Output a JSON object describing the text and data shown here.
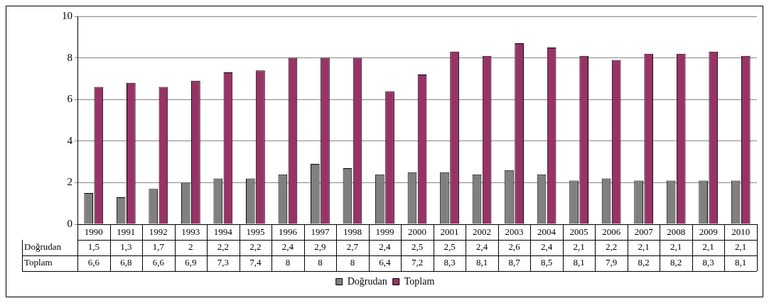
{
  "chart_data": {
    "type": "bar",
    "categories": [
      "1990",
      "1991",
      "1992",
      "1993",
      "1994",
      "1995",
      "1996",
      "1997",
      "1998",
      "1999",
      "2000",
      "2001",
      "2002",
      "2003",
      "2004",
      "2005",
      "2006",
      "2007",
      "2008",
      "2009",
      "2010"
    ],
    "series": [
      {
        "name": "Doğrudan",
        "color": "#808080",
        "values": [
          1.5,
          1.3,
          1.7,
          2,
          2.2,
          2.2,
          2.4,
          2.9,
          2.7,
          2.4,
          2.5,
          2.5,
          2.4,
          2.6,
          2.4,
          2.1,
          2.2,
          2.1,
          2.1,
          2.1,
          2.1
        ],
        "value_labels": [
          "1,5",
          "1,3",
          "1,7",
          "2",
          "2,2",
          "2,2",
          "2,4",
          "2,9",
          "2,7",
          "2,4",
          "2,5",
          "2,5",
          "2,4",
          "2,6",
          "2,4",
          "2,1",
          "2,2",
          "2,1",
          "2,1",
          "2,1",
          "2,1"
        ]
      },
      {
        "name": "Toplam",
        "color": "#993366",
        "values": [
          6.6,
          6.8,
          6.6,
          6.9,
          7.3,
          7.4,
          8,
          8,
          8,
          6.4,
          7.2,
          8.3,
          8.1,
          8.7,
          8.5,
          8.1,
          7.9,
          8.2,
          8.2,
          8.3,
          8.1
        ],
        "value_labels": [
          "6,6",
          "6,8",
          "6,6",
          "6,9",
          "7,3",
          "7,4",
          "8",
          "8",
          "8",
          "6,4",
          "7,2",
          "8,3",
          "8,1",
          "8,7",
          "8,5",
          "8,1",
          "7,9",
          "8,2",
          "8,2",
          "8,3",
          "8,1"
        ]
      }
    ],
    "ylim": [
      0,
      10
    ],
    "yticks": [
      0,
      2,
      4,
      6,
      8,
      10
    ],
    "grid": "y",
    "legend": "bottom"
  }
}
